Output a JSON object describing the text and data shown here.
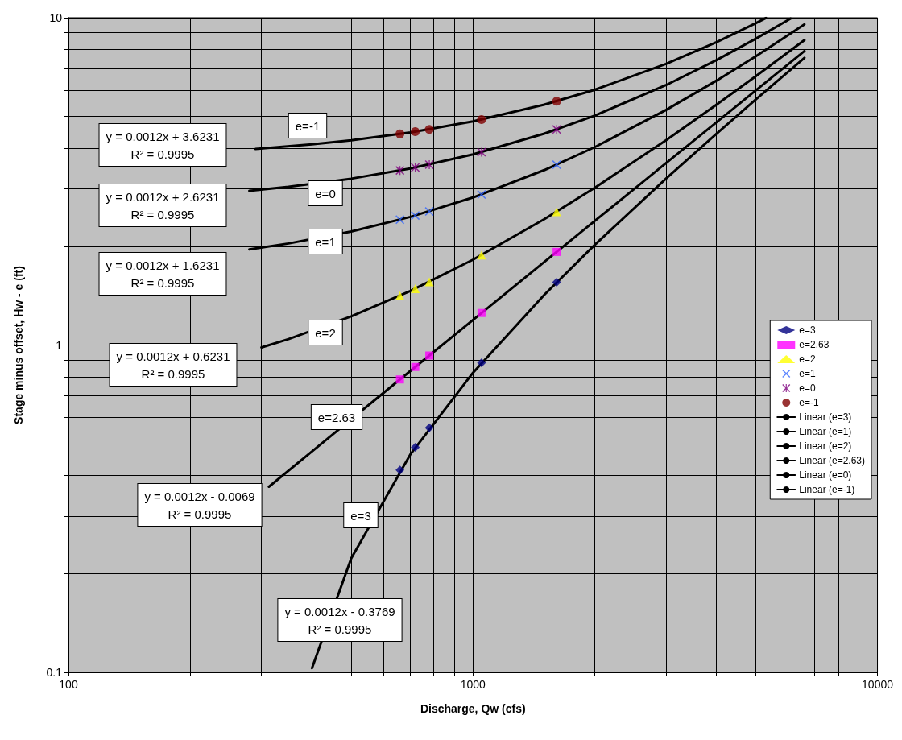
{
  "chart_data": {
    "type": "scatter",
    "xlabel": "Discharge, Qw (cfs)",
    "ylabel": "Stage minus offset, Hw - e (ft)",
    "log": "xy",
    "grid": true,
    "legend": "right",
    "xlim": [
      100,
      10000
    ],
    "ylim": [
      0.1,
      10
    ],
    "xticks": [
      100,
      {
        "value": 200,
        "label": null
      },
      {
        "value": 300,
        "label": null
      },
      {
        "value": 400,
        "label": null
      },
      {
        "value": 500,
        "label": null
      },
      {
        "value": 600,
        "label": null
      },
      {
        "value": 700,
        "label": null
      },
      {
        "value": 800,
        "label": null
      },
      {
        "value": 900,
        "label": null
      },
      1000,
      {
        "value": 2000,
        "label": null
      },
      {
        "value": 3000,
        "label": null
      },
      {
        "value": 4000,
        "label": null
      },
      {
        "value": 5000,
        "label": null
      },
      {
        "value": 6000,
        "label": null
      },
      {
        "value": 7000,
        "label": null
      },
      {
        "value": 8000,
        "label": null
      },
      {
        "value": 9000,
        "label": null
      },
      10000
    ],
    "yticks": [
      0.1,
      {
        "value": 0.2,
        "label": null
      },
      {
        "value": 0.3,
        "label": null
      },
      {
        "value": 0.4,
        "label": null
      },
      {
        "value": 0.5,
        "label": null
      },
      {
        "value": 0.6,
        "label": null
      },
      {
        "value": 0.7,
        "label": null
      },
      {
        "value": 0.8,
        "label": null
      },
      {
        "value": 0.9,
        "label": null
      },
      1,
      {
        "value": 2,
        "label": null
      },
      {
        "value": 3,
        "label": null
      },
      {
        "value": 4,
        "label": null
      },
      {
        "value": 5,
        "label": null
      },
      {
        "value": 6,
        "label": null
      },
      {
        "value": 7,
        "label": null
      },
      {
        "value": 8,
        "label": null
      },
      {
        "value": 9,
        "label": null
      },
      10
    ],
    "series": [
      {
        "name": "e=3",
        "type": "scatter",
        "marker": "diamond",
        "color": "#000080",
        "x": [
          660,
          720,
          780,
          1050,
          1610
        ],
        "values": [
          0.415,
          0.487,
          0.559,
          0.883,
          1.555
        ]
      },
      {
        "name": "e=2.63",
        "type": "scatter",
        "marker": "square",
        "color": "#ff00ff",
        "x": [
          660,
          720,
          780,
          1050,
          1610
        ],
        "values": [
          0.785,
          0.857,
          0.929,
          1.253,
          1.925
        ]
      },
      {
        "name": "e=2",
        "type": "scatter",
        "marker": "triangle",
        "color": "#ffff00",
        "x": [
          660,
          720,
          780,
          1050,
          1610
        ],
        "values": [
          1.415,
          1.487,
          1.559,
          1.883,
          2.555
        ]
      },
      {
        "name": "e=1",
        "type": "scatter",
        "marker": "cross",
        "color": "#3366ff",
        "x": [
          660,
          720,
          780,
          1050,
          1610
        ],
        "values": [
          2.415,
          2.487,
          2.559,
          2.883,
          3.555
        ]
      },
      {
        "name": "e=0",
        "type": "scatter",
        "marker": "star",
        "color": "#800080",
        "x": [
          660,
          720,
          780,
          1050,
          1610
        ],
        "values": [
          3.415,
          3.487,
          3.559,
          3.883,
          4.555
        ]
      },
      {
        "name": "e=-1",
        "type": "scatter",
        "marker": "circle",
        "color": "#800000",
        "x": [
          660,
          720,
          780,
          1050,
          1610
        ],
        "values": [
          4.415,
          4.487,
          4.559,
          4.883,
          5.555
        ]
      },
      {
        "name": "Linear (e=3)",
        "type": "line",
        "marker": "none",
        "line_style": "solid",
        "color": "#000000",
        "x": [
          400,
          500,
          700,
          1000,
          1500,
          2000,
          3000,
          4000,
          5000,
          6600
        ],
        "values": [
          0.103,
          0.223,
          0.463,
          0.823,
          1.423,
          2.023,
          3.223,
          4.423,
          5.623,
          7.543
        ]
      },
      {
        "name": "Linear (e=1)",
        "type": "line",
        "marker": "none",
        "line_style": "solid",
        "color": "#000000",
        "x": [
          280,
          350,
          500,
          700,
          1000,
          1500,
          2000,
          3000,
          4000,
          5000,
          6600
        ],
        "values": [
          1.959,
          2.043,
          2.223,
          2.463,
          2.823,
          3.423,
          4.023,
          5.223,
          6.423,
          7.623,
          9.543
        ]
      },
      {
        "name": "Linear (e=2)",
        "type": "line",
        "marker": "none",
        "line_style": "solid",
        "color": "#000000",
        "x": [
          300,
          350,
          500,
          700,
          1000,
          1500,
          2000,
          3000,
          4000,
          5000,
          6600
        ],
        "values": [
          0.983,
          1.043,
          1.223,
          1.463,
          1.823,
          2.423,
          3.023,
          4.223,
          5.423,
          6.623,
          8.543
        ]
      },
      {
        "name": "Linear (e=2.63)",
        "type": "line",
        "marker": "none",
        "line_style": "solid",
        "color": "#000000",
        "x": [
          313,
          400,
          560,
          700,
          1000,
          1500,
          2000,
          3000,
          4000,
          5000,
          6600
        ],
        "values": [
          0.369,
          0.473,
          0.665,
          0.833,
          1.193,
          1.793,
          2.393,
          3.593,
          4.793,
          5.993,
          7.913
        ]
      },
      {
        "name": "Linear (e=0)",
        "type": "line",
        "marker": "none",
        "line_style": "solid",
        "color": "#000000",
        "x": [
          280,
          350,
          500,
          700,
          1000,
          1500,
          2000,
          3000,
          4000,
          5000,
          6100
        ],
        "values": [
          2.959,
          3.043,
          3.223,
          3.463,
          3.823,
          4.423,
          5.023,
          6.223,
          7.423,
          8.623,
          9.943
        ]
      },
      {
        "name": "Linear (e=-1)",
        "type": "line",
        "marker": "none",
        "line_style": "solid",
        "color": "#000000",
        "x": [
          290,
          400,
          500,
          700,
          1000,
          1500,
          2000,
          3000,
          4000,
          5000,
          5300
        ],
        "values": [
          3.971,
          4.103,
          4.223,
          4.463,
          4.823,
          5.423,
          6.023,
          7.223,
          8.423,
          9.623,
          9.983
        ]
      }
    ],
    "annotations": [
      "y = 0.0012x + 3.6231\nR² = 0.9995",
      "y = 0.0012x + 2.6231\nR² = 0.9995",
      "y = 0.0012x + 1.6231\nR² = 0.9995",
      "y = 0.0012x + 0.6231\nR² = 0.9995",
      "y = 0.0012x - 0.0069\nR² = 0.9995",
      "y = 0.0012x - 0.3769\nR² = 0.9995",
      "e=-1",
      "e=0",
      "e=1",
      "e=2",
      "e=2.63",
      "e=3"
    ]
  }
}
